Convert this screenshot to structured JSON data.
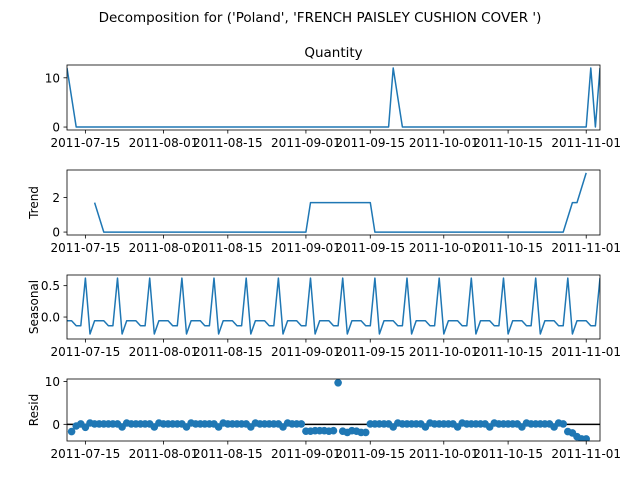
{
  "suptitle": "Decomposition for ('Poland', 'FRENCH PAISLEY CUSHION COVER ')",
  "colors": {
    "series": "#1f77b4",
    "axis": "#000000",
    "zero_line": "#000000"
  },
  "chart_data": [
    {
      "type": "line",
      "title": "Quantity",
      "ylabel": "",
      "x_start": "2011-07-11",
      "x_end": "2011-11-04",
      "xticks": [
        "2011-07-15",
        "2011-08-01",
        "2011-08-15",
        "2011-09-01",
        "2011-09-15",
        "2011-10-01",
        "2011-10-15",
        "2011-11-01"
      ],
      "ylim": [
        -0.6,
        12.6
      ],
      "yticks": [
        0,
        10
      ],
      "points": [
        [
          "2011-07-11",
          12
        ],
        [
          "2011-07-13",
          0
        ],
        [
          "2011-09-19",
          0
        ],
        [
          "2011-09-20",
          12
        ],
        [
          "2011-09-22",
          0
        ],
        [
          "2011-11-01",
          0
        ],
        [
          "2011-11-02",
          12
        ],
        [
          "2011-11-03",
          0
        ],
        [
          "2011-11-04",
          12
        ]
      ]
    },
    {
      "type": "line",
      "title": "",
      "ylabel": "Trend",
      "x_start": "2011-07-11",
      "x_end": "2011-11-04",
      "xticks": [
        "2011-07-15",
        "2011-08-01",
        "2011-08-15",
        "2011-09-01",
        "2011-09-15",
        "2011-10-01",
        "2011-10-15",
        "2011-11-01"
      ],
      "ylim": [
        -0.17,
        3.6
      ],
      "yticks": [
        0,
        2
      ],
      "points": [
        [
          "2011-07-17",
          1.71
        ],
        [
          "2011-07-19",
          0
        ],
        [
          "2011-09-01",
          0
        ],
        [
          "2011-09-02",
          1.71
        ],
        [
          "2011-09-15",
          1.71
        ],
        [
          "2011-09-16",
          0
        ],
        [
          "2011-10-27",
          0
        ],
        [
          "2011-10-29",
          1.71
        ],
        [
          "2011-10-30",
          1.71
        ],
        [
          "2011-11-01",
          3.43
        ]
      ]
    },
    {
      "type": "line",
      "title": "",
      "ylabel": "Seasonal",
      "x_start": "2011-07-11",
      "x_end": "2011-11-04",
      "xticks": [
        "2011-07-15",
        "2011-08-01",
        "2011-08-15",
        "2011-09-01",
        "2011-09-15",
        "2011-10-01",
        "2011-10-15",
        "2011-11-01"
      ],
      "ylim": [
        -0.35,
        0.67
      ],
      "yticks": [
        0.0,
        0.5
      ],
      "yticklabels": [
        "0.0",
        "0.5"
      ],
      "weekly_pattern": [
        -0.06,
        -0.06,
        -0.14,
        -0.14,
        0.62,
        -0.27,
        -0.06
      ],
      "pattern_start": "2011-07-11"
    },
    {
      "type": "scatter",
      "title": "",
      "ylabel": "Resid",
      "x_start": "2011-07-11",
      "x_end": "2011-11-04",
      "xticks": [
        "2011-07-15",
        "2011-08-01",
        "2011-08-15",
        "2011-09-01",
        "2011-09-15",
        "2011-10-01",
        "2011-10-15",
        "2011-11-01"
      ],
      "ylim": [
        -3.9,
        10.6
      ],
      "yticks": [
        0,
        10
      ],
      "zero_line": true,
      "points": [
        [
          "2011-07-12",
          -1.7
        ],
        [
          "2011-07-13",
          -0.4
        ],
        [
          "2011-07-14",
          0.1
        ],
        [
          "2011-07-15",
          -0.7
        ],
        [
          "2011-07-16",
          0.3
        ],
        [
          "2011-07-17",
          0.1
        ],
        [
          "2011-07-18",
          0.1
        ],
        [
          "2011-07-19",
          0.1
        ],
        [
          "2011-07-20",
          0.1
        ],
        [
          "2011-07-21",
          0.1
        ],
        [
          "2011-07-22",
          0.1
        ],
        [
          "2011-07-23",
          -0.6
        ],
        [
          "2011-07-24",
          0.3
        ],
        [
          "2011-07-25",
          0.1
        ],
        [
          "2011-07-26",
          0.1
        ],
        [
          "2011-07-27",
          0.1
        ],
        [
          "2011-07-28",
          0.1
        ],
        [
          "2011-07-29",
          0.1
        ],
        [
          "2011-07-30",
          -0.6
        ],
        [
          "2011-07-31",
          0.3
        ],
        [
          "2011-08-01",
          0.1
        ],
        [
          "2011-08-02",
          0.1
        ],
        [
          "2011-08-03",
          0.1
        ],
        [
          "2011-08-04",
          0.1
        ],
        [
          "2011-08-05",
          0.1
        ],
        [
          "2011-08-06",
          -0.6
        ],
        [
          "2011-08-07",
          0.3
        ],
        [
          "2011-08-08",
          0.1
        ],
        [
          "2011-08-09",
          0.1
        ],
        [
          "2011-08-10",
          0.1
        ],
        [
          "2011-08-11",
          0.1
        ],
        [
          "2011-08-12",
          0.1
        ],
        [
          "2011-08-13",
          -0.6
        ],
        [
          "2011-08-14",
          0.3
        ],
        [
          "2011-08-15",
          0.1
        ],
        [
          "2011-08-16",
          0.1
        ],
        [
          "2011-08-17",
          0.1
        ],
        [
          "2011-08-18",
          0.1
        ],
        [
          "2011-08-19",
          0.1
        ],
        [
          "2011-08-20",
          -0.6
        ],
        [
          "2011-08-21",
          0.3
        ],
        [
          "2011-08-22",
          0.1
        ],
        [
          "2011-08-23",
          0.1
        ],
        [
          "2011-08-24",
          0.1
        ],
        [
          "2011-08-25",
          0.1
        ],
        [
          "2011-08-26",
          0.1
        ],
        [
          "2011-08-27",
          -0.6
        ],
        [
          "2011-08-28",
          0.3
        ],
        [
          "2011-08-29",
          0.1
        ],
        [
          "2011-08-30",
          0.1
        ],
        [
          "2011-08-31",
          0.1
        ],
        [
          "2011-09-01",
          -1.6
        ],
        [
          "2011-09-02",
          -1.6
        ],
        [
          "2011-09-03",
          -1.5
        ],
        [
          "2011-09-04",
          -1.5
        ],
        [
          "2011-09-05",
          -1.5
        ],
        [
          "2011-09-06",
          -1.6
        ],
        [
          "2011-09-07",
          -1.5
        ],
        [
          "2011-09-08",
          9.7
        ],
        [
          "2011-09-09",
          -1.6
        ],
        [
          "2011-09-10",
          -1.9
        ],
        [
          "2011-09-11",
          -1.5
        ],
        [
          "2011-09-12",
          -1.6
        ],
        [
          "2011-09-13",
          -1.9
        ],
        [
          "2011-09-14",
          -1.9
        ],
        [
          "2011-09-15",
          0.1
        ],
        [
          "2011-09-16",
          0.1
        ],
        [
          "2011-09-17",
          0.1
        ],
        [
          "2011-09-18",
          0.1
        ],
        [
          "2011-09-19",
          0.1
        ],
        [
          "2011-09-20",
          -0.6
        ],
        [
          "2011-09-21",
          0.3
        ],
        [
          "2011-09-22",
          0.1
        ],
        [
          "2011-09-23",
          0.1
        ],
        [
          "2011-09-24",
          0.1
        ],
        [
          "2011-09-25",
          0.1
        ],
        [
          "2011-09-26",
          0.1
        ],
        [
          "2011-09-27",
          -0.6
        ],
        [
          "2011-09-28",
          0.3
        ],
        [
          "2011-09-29",
          0.1
        ],
        [
          "2011-09-30",
          0.1
        ],
        [
          "2011-10-01",
          0.1
        ],
        [
          "2011-10-02",
          0.1
        ],
        [
          "2011-10-03",
          0.1
        ],
        [
          "2011-10-04",
          -0.6
        ],
        [
          "2011-10-05",
          0.3
        ],
        [
          "2011-10-06",
          0.1
        ],
        [
          "2011-10-07",
          0.1
        ],
        [
          "2011-10-08",
          0.1
        ],
        [
          "2011-10-09",
          0.1
        ],
        [
          "2011-10-10",
          0.1
        ],
        [
          "2011-10-11",
          -0.6
        ],
        [
          "2011-10-12",
          0.3
        ],
        [
          "2011-10-13",
          0.1
        ],
        [
          "2011-10-14",
          0.1
        ],
        [
          "2011-10-15",
          0.1
        ],
        [
          "2011-10-16",
          0.1
        ],
        [
          "2011-10-17",
          0.1
        ],
        [
          "2011-10-18",
          -0.6
        ],
        [
          "2011-10-19",
          0.3
        ],
        [
          "2011-10-20",
          0.1
        ],
        [
          "2011-10-21",
          0.1
        ],
        [
          "2011-10-22",
          0.1
        ],
        [
          "2011-10-23",
          0.1
        ],
        [
          "2011-10-24",
          0.1
        ],
        [
          "2011-10-25",
          -0.6
        ],
        [
          "2011-10-26",
          0.3
        ],
        [
          "2011-10-27",
          0.1
        ],
        [
          "2011-10-28",
          -1.7
        ],
        [
          "2011-10-29",
          -2.0
        ],
        [
          "2011-10-30",
          -2.9
        ],
        [
          "2011-10-31",
          -3.4
        ],
        [
          "2011-11-01",
          -3.4
        ]
      ]
    }
  ]
}
